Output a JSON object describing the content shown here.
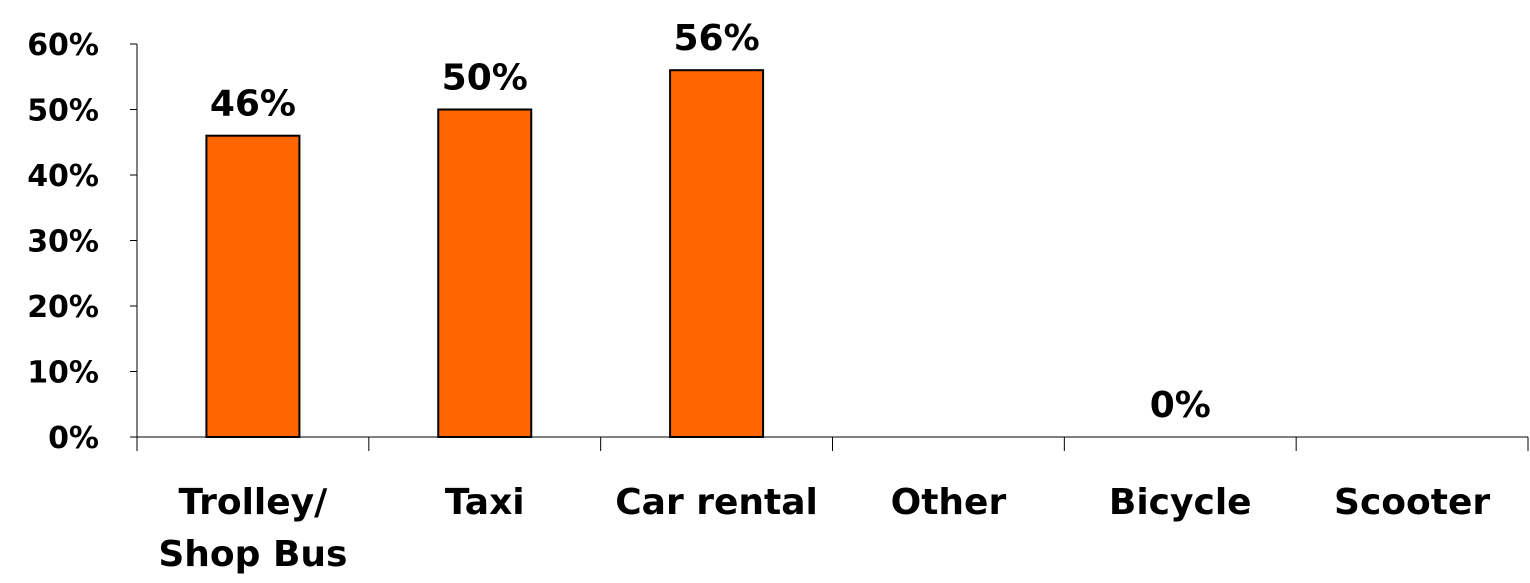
{
  "chart_data": {
    "type": "bar",
    "categories": [
      [
        "Trolley/",
        "Shop Bus"
      ],
      [
        "Taxi"
      ],
      [
        "Car rental"
      ],
      [
        "Other"
      ],
      [
        "Bicycle"
      ],
      [
        "Scooter"
      ]
    ],
    "values": [
      46,
      50,
      56,
      null,
      0,
      null
    ],
    "data_labels": [
      "46%",
      "50%",
      "56%",
      "",
      "0%",
      ""
    ],
    "ylim": [
      0,
      60
    ],
    "yticks": [
      0,
      10,
      20,
      30,
      40,
      50,
      60
    ],
    "ytick_labels": [
      "0%",
      "10%",
      "20%",
      "30%",
      "40%",
      "50%",
      "60%"
    ],
    "title": "",
    "xlabel": "",
    "ylabel": "",
    "grid": false,
    "legend": "none",
    "colors": {
      "bar_fill": "#ff6600",
      "bar_stroke": "#000000",
      "axis": "#000000",
      "text": "#000000"
    }
  }
}
